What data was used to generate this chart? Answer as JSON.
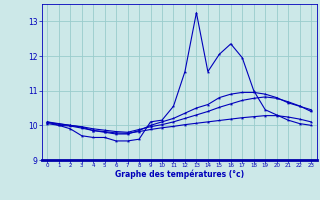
{
  "xlabel": "Graphe des températures (°c)",
  "xlim": [
    -0.5,
    23.5
  ],
  "ylim": [
    9,
    13.5
  ],
  "yticks": [
    9,
    10,
    11,
    12,
    13
  ],
  "xticks": [
    0,
    1,
    2,
    3,
    4,
    5,
    6,
    7,
    8,
    9,
    10,
    11,
    12,
    13,
    14,
    15,
    16,
    17,
    18,
    19,
    20,
    21,
    22,
    23
  ],
  "background_color": "#cce8e8",
  "grid_color": "#99cccc",
  "line_color": "#0000bb",
  "axis_label_color": "#0000bb",
  "xaxis_bar_color": "#0000aa",
  "line1_y": [
    10.1,
    10.0,
    9.9,
    9.7,
    9.65,
    9.65,
    9.55,
    9.55,
    9.6,
    10.1,
    10.15,
    10.55,
    11.55,
    13.25,
    11.55,
    12.05,
    12.35,
    11.95,
    11.0,
    10.45,
    10.3,
    10.15,
    10.05,
    10.0
  ],
  "line2_y": [
    10.1,
    10.05,
    10.0,
    9.95,
    9.85,
    9.8,
    9.75,
    9.75,
    9.85,
    10.0,
    10.1,
    10.2,
    10.35,
    10.5,
    10.6,
    10.8,
    10.9,
    10.95,
    10.95,
    10.9,
    10.8,
    10.65,
    10.55,
    10.45
  ],
  "line3_y": [
    10.05,
    10.0,
    9.98,
    9.92,
    9.85,
    9.82,
    9.78,
    9.77,
    9.82,
    9.88,
    9.93,
    9.97,
    10.02,
    10.06,
    10.1,
    10.14,
    10.18,
    10.22,
    10.25,
    10.28,
    10.28,
    10.24,
    10.18,
    10.1
  ],
  "line4_y": [
    10.08,
    10.04,
    10.0,
    9.96,
    9.9,
    9.86,
    9.82,
    9.8,
    9.88,
    9.96,
    10.02,
    10.1,
    10.2,
    10.3,
    10.4,
    10.52,
    10.62,
    10.72,
    10.78,
    10.82,
    10.78,
    10.68,
    10.56,
    10.4
  ]
}
